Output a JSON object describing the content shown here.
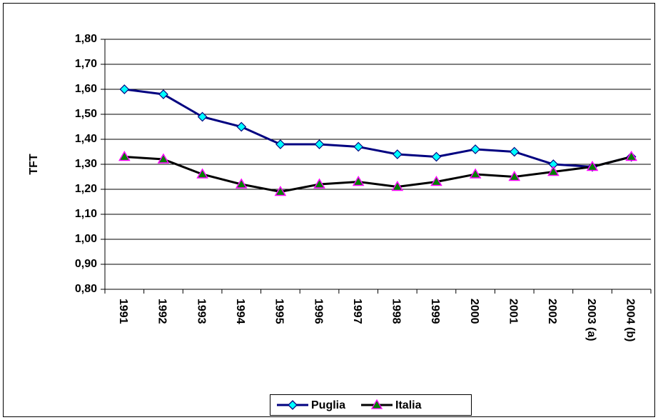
{
  "chart_data": {
    "type": "line",
    "y_label": "TFT",
    "categories": [
      "1991",
      "1992",
      "1993",
      "1994",
      "1995",
      "1996",
      "1997",
      "1998",
      "1999",
      "2000",
      "2001",
      "2002",
      "2003 (a)",
      "2004 (b)"
    ],
    "series": [
      {
        "name": "Puglia",
        "color": "#000080",
        "marker": "diamond",
        "marker_fill": "#00ffff",
        "marker_stroke": "#000080",
        "values": [
          1.6,
          1.58,
          1.49,
          1.45,
          1.38,
          1.38,
          1.37,
          1.34,
          1.33,
          1.36,
          1.35,
          1.3,
          1.29,
          1.33
        ]
      },
      {
        "name": "Italia",
        "color": "#000000",
        "marker": "triangle",
        "marker_fill": "#008000",
        "marker_stroke": "#ff00ff",
        "values": [
          1.33,
          1.32,
          1.26,
          1.22,
          1.19,
          1.22,
          1.23,
          1.21,
          1.23,
          1.26,
          1.25,
          1.27,
          1.29,
          1.33
        ]
      }
    ],
    "ylim": [
      0.8,
      1.8
    ],
    "yticks": [
      {
        "value": 0.8,
        "label": "0,80"
      },
      {
        "value": 0.9,
        "label": "0,90"
      },
      {
        "value": 1.0,
        "label": "1,00"
      },
      {
        "value": 1.1,
        "label": "1,10"
      },
      {
        "value": 1.2,
        "label": "1,20"
      },
      {
        "value": 1.3,
        "label": "1,30"
      },
      {
        "value": 1.4,
        "label": "1,40"
      },
      {
        "value": 1.5,
        "label": "1,50"
      },
      {
        "value": 1.6,
        "label": "1,60"
      },
      {
        "value": 1.7,
        "label": "1,70"
      },
      {
        "value": 1.8,
        "label": "1,80"
      }
    ],
    "grid": true,
    "legend": "bottom"
  }
}
